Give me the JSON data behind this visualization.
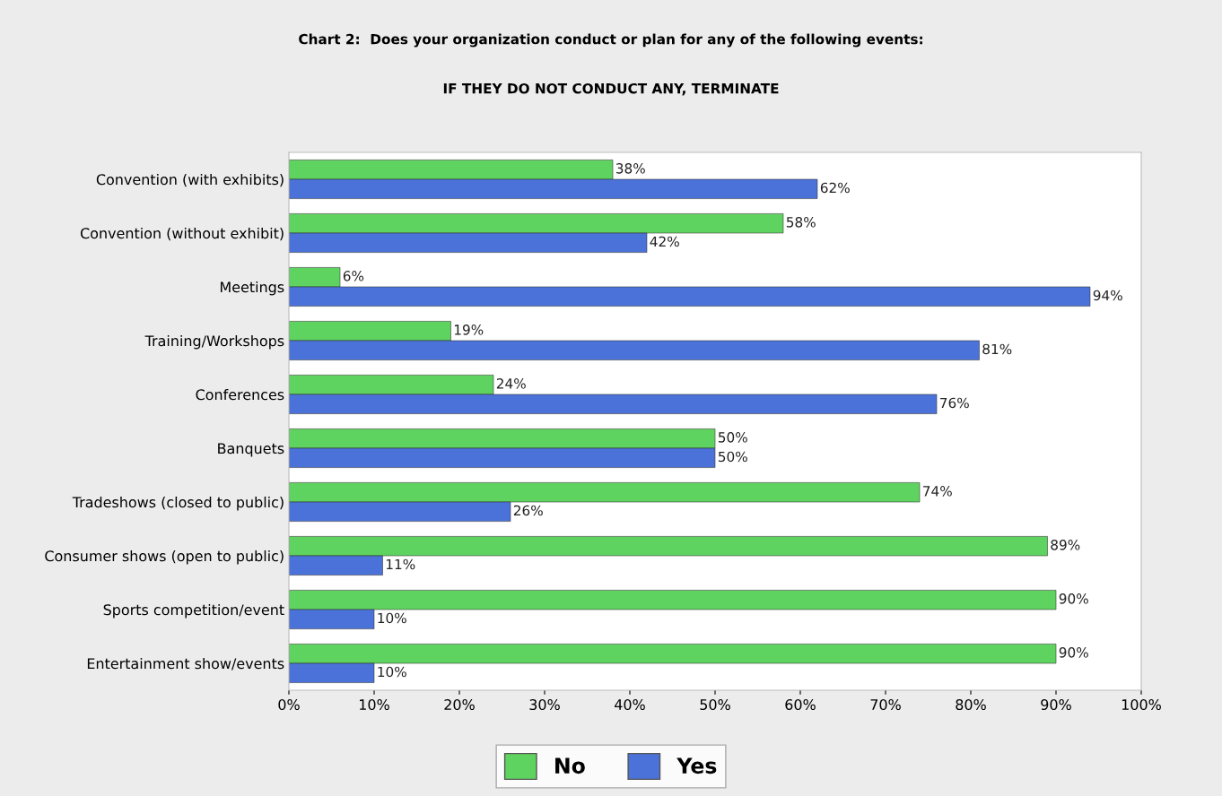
{
  "chart_data": {
    "type": "bar",
    "orientation": "horizontal",
    "title": "Chart 2:  Does your organization conduct or plan for any of the following events:",
    "subtitle": "IF THEY DO NOT CONDUCT ANY, TERMINATE",
    "categories": [
      "Convention (with exhibits)",
      "Convention (without exhibit)",
      "Meetings",
      "Training/Workshops",
      "Conferences",
      "Banquets",
      "Tradeshows (closed to public)",
      "Consumer shows (open to public)",
      "Sports competition/event",
      "Entertainment show/events"
    ],
    "series": [
      {
        "name": "No",
        "color": "#5fd35f",
        "values": [
          38,
          58,
          6,
          19,
          24,
          50,
          74,
          89,
          90,
          90
        ],
        "value_labels": [
          "38%",
          "58%",
          "6%",
          "19%",
          "24%",
          "50%",
          "74%",
          "89%",
          "90%",
          "90%"
        ]
      },
      {
        "name": "Yes",
        "color": "#4a72d8",
        "values": [
          62,
          42,
          94,
          81,
          76,
          50,
          26,
          11,
          10,
          10
        ],
        "value_labels": [
          "62%",
          "42%",
          "94%",
          "81%",
          "76%",
          "50%",
          "26%",
          "11%",
          "10%",
          "10%"
        ]
      }
    ],
    "xlim": [
      0,
      100
    ],
    "xticks": [
      {
        "value": 0,
        "label": "0%"
      },
      {
        "value": 10,
        "label": "10%"
      },
      {
        "value": 20,
        "label": "20%"
      },
      {
        "value": 30,
        "label": "30%"
      },
      {
        "value": 40,
        "label": "40%"
      },
      {
        "value": 50,
        "label": "50%"
      },
      {
        "value": 60,
        "label": "60%"
      },
      {
        "value": 70,
        "label": "70%"
      },
      {
        "value": 80,
        "label": "80%"
      },
      {
        "value": 90,
        "label": "90%"
      },
      {
        "value": 100,
        "label": "100%"
      }
    ],
    "grid": false,
    "legend": "bottom"
  }
}
